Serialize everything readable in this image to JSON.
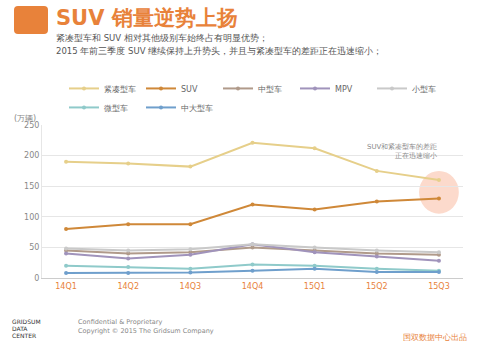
{
  "chart_data": {
    "type": "line",
    "title": "SUV 销量逆势上扬",
    "subtitle": [
      "紧凑型车和 SUV 相对其他级别车始终占有明显优势；",
      "2015 年前三季度 SUV 继续保持上升势头，并且与紧凑型车的差距正在迅速缩小；"
    ],
    "y_label": "(万辆)",
    "categories": [
      "14Q1",
      "14Q2",
      "14Q3",
      "14Q4",
      "15Q1",
      "15Q2",
      "15Q3"
    ],
    "series": [
      {
        "name": "紧凑型车",
        "color": "#e6cf8a",
        "values": [
          190,
          187,
          182,
          221,
          212,
          175,
          160
        ]
      },
      {
        "name": "SUV",
        "color": "#cf8838",
        "values": [
          80,
          88,
          88,
          120,
          112,
          125,
          130
        ]
      },
      {
        "name": "中型车",
        "color": "#b09a8a",
        "values": [
          45,
          40,
          42,
          50,
          45,
          40,
          38
        ]
      },
      {
        "name": "MPV",
        "color": "#a093bb",
        "values": [
          40,
          32,
          38,
          55,
          42,
          35,
          28
        ]
      },
      {
        "name": "小型车",
        "color": "#c9c9c9",
        "values": [
          48,
          45,
          47,
          55,
          50,
          45,
          42
        ]
      },
      {
        "name": "微型车",
        "color": "#8fcaca",
        "values": [
          20,
          18,
          15,
          22,
          20,
          15,
          12
        ]
      },
      {
        "name": "中大型车",
        "color": "#6f9fcc",
        "values": [
          8,
          8,
          9,
          12,
          15,
          10,
          10
        ]
      }
    ],
    "annotations": [
      {
        "category": "15Q3",
        "y": 190,
        "text": [
          "SUV和紧凑型车的差距",
          "正在迅速缩小"
        ]
      }
    ],
    "ylim": [
      0,
      250
    ],
    "yticks": [
      0,
      50,
      100,
      150,
      200,
      250
    ],
    "grid": true,
    "legend": "top",
    "marker": "circle"
  },
  "footer": {
    "logo": [
      "GRIDSUM",
      "DATA",
      "CENTER"
    ],
    "lines": [
      "Confidential & Proprietary",
      "Copyright © 2015 The Gridsum Company"
    ],
    "credit": "国双数据中心出品"
  }
}
